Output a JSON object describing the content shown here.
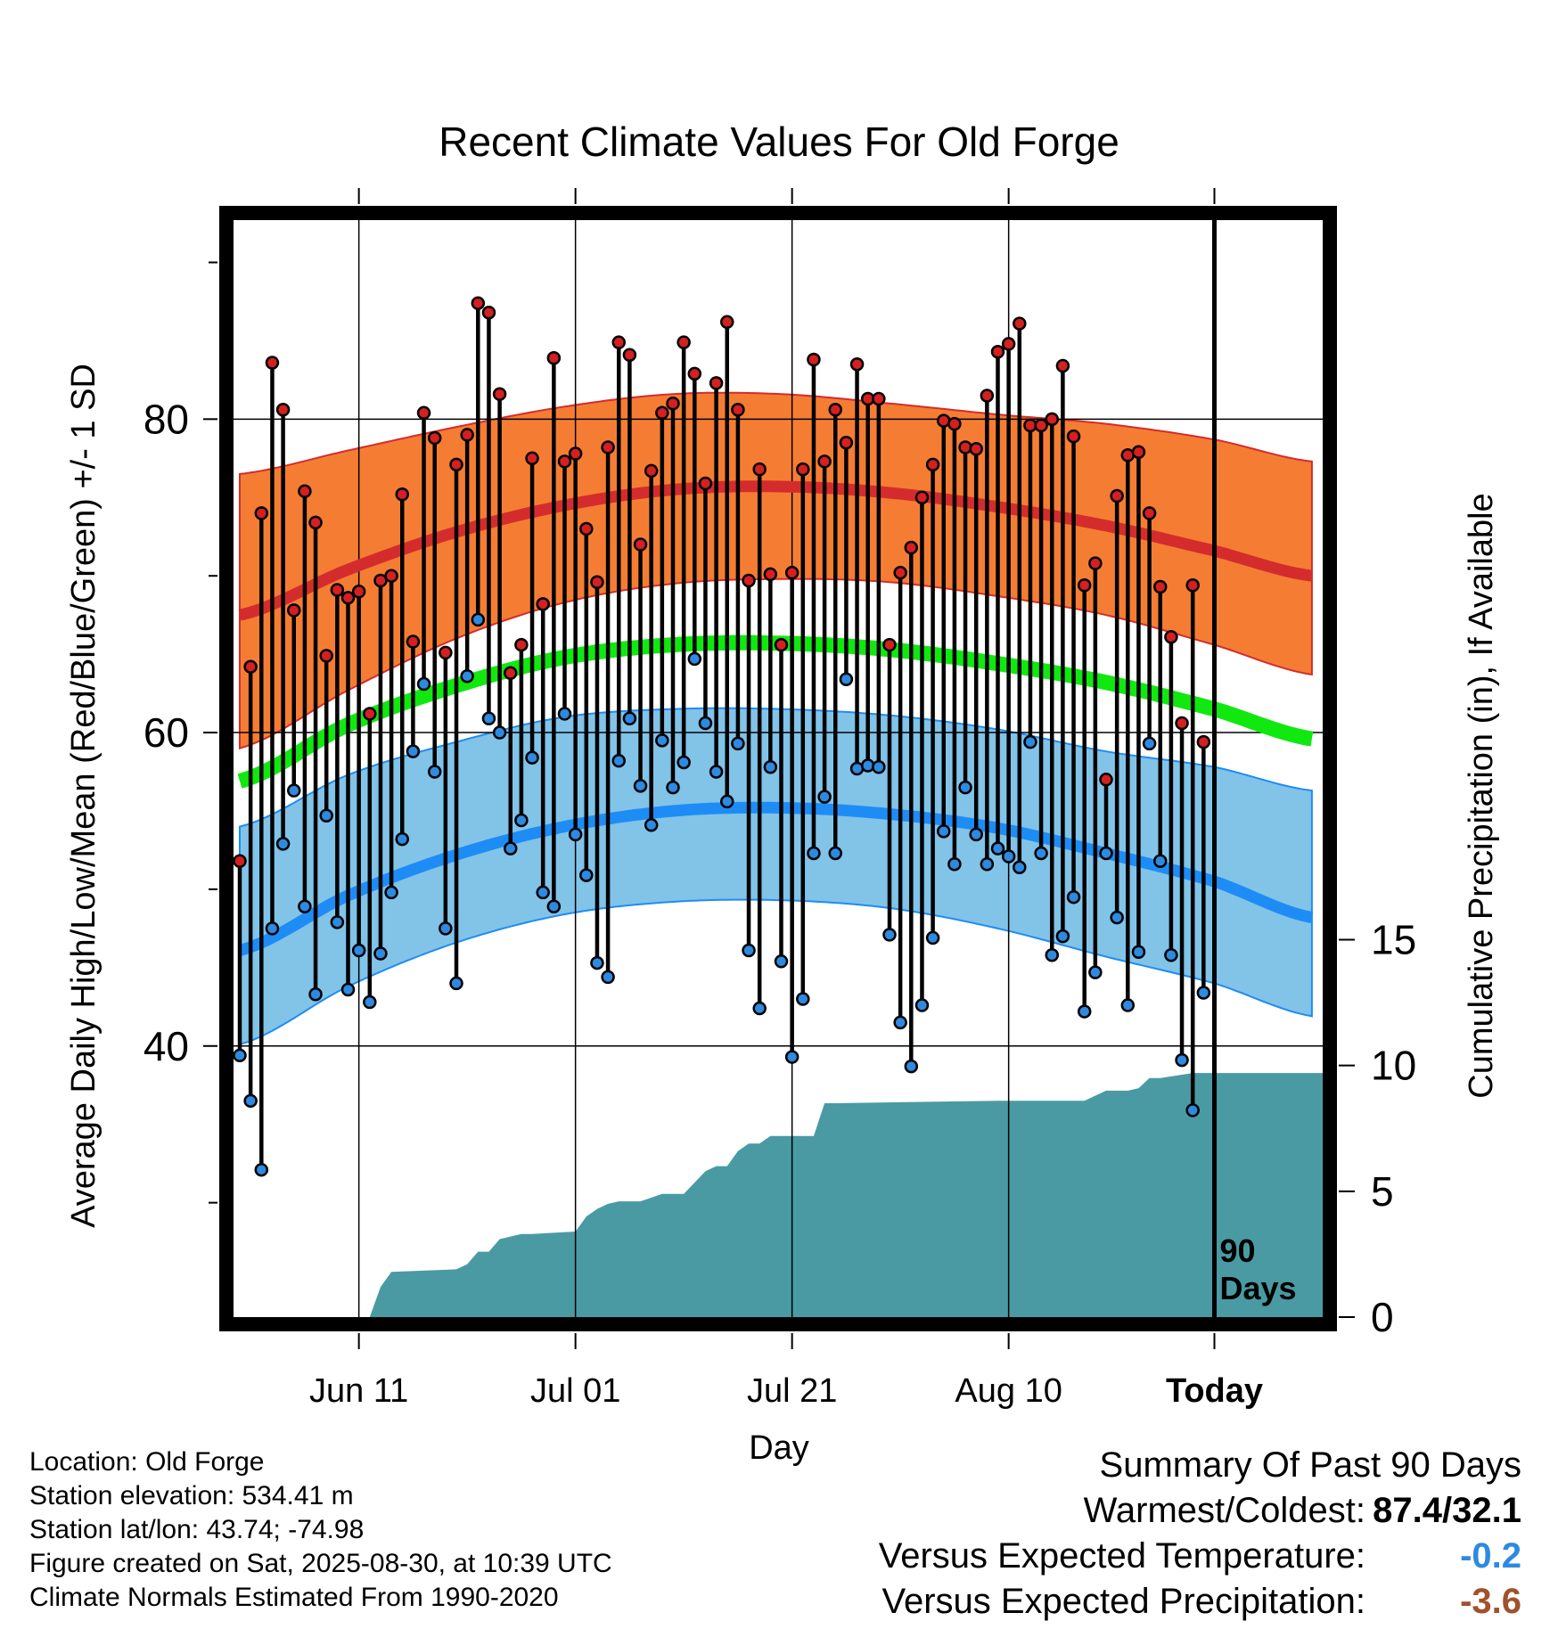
{
  "chart_data": {
    "type": "line",
    "title": "Recent Climate Values For Old Forge",
    "xlabel": "Day",
    "ylabel": "Average Daily High/Low/Mean (Red/Blue/Green) +/- 1 SD",
    "y2label": "Cumulative Precipitation (in), If Available",
    "xlim": [
      -11,
      9
    ],
    "ylim": [
      22.7,
      92.7
    ],
    "y2lim": [
      0,
      43.6
    ],
    "x_ticks": [
      {
        "day": -79,
        "label": "Jun 11"
      },
      {
        "day": -59,
        "label": "Jul 01"
      },
      {
        "day": -39,
        "label": "Jul 21"
      },
      {
        "day": -19,
        "label": "Aug 10"
      },
      {
        "day": 0,
        "label": "Today"
      }
    ],
    "y_ticks": [
      40,
      60,
      80
    ],
    "y_minor_ticks": [
      30,
      50,
      70,
      90
    ],
    "y2_ticks": [
      0,
      5,
      10,
      15
    ],
    "today_label": "90\nDays",
    "grid": true,
    "normals": {
      "day": [
        -90,
        -80,
        -70,
        -60,
        -50,
        -40,
        -30,
        -20,
        -10,
        0,
        9
      ],
      "high_mean": [
        67.5,
        70.4,
        72.8,
        74.5,
        75.5,
        75.7,
        75.3,
        74.4,
        73.2,
        71.6,
        70.0
      ],
      "high_sd_upper": [
        76.5,
        78.0,
        79.5,
        80.8,
        81.6,
        81.6,
        81.0,
        80.3,
        79.7,
        78.7,
        77.3
      ],
      "high_sd_lower": [
        59.0,
        62.7,
        66.0,
        68.3,
        69.5,
        69.8,
        69.6,
        68.7,
        67.5,
        65.6,
        63.7
      ],
      "mean": [
        56.9,
        60.5,
        63.0,
        64.8,
        65.6,
        65.7,
        65.3,
        64.4,
        63.2,
        61.5,
        59.6
      ],
      "low_mean": [
        46.1,
        49.6,
        52.2,
        54.0,
        55.0,
        55.2,
        54.8,
        53.9,
        52.3,
        50.5,
        48.2
      ],
      "low_sd_upper": [
        54.0,
        57.3,
        59.4,
        61.0,
        61.5,
        61.5,
        61.1,
        60.2,
        58.8,
        57.8,
        56.3
      ],
      "low_sd_lower": [
        40.1,
        43.8,
        46.6,
        48.4,
        49.2,
        49.3,
        48.8,
        47.5,
        45.7,
        44.0,
        41.9
      ]
    },
    "highs": [
      51.8,
      64.2,
      74.0,
      83.6,
      80.6,
      67.8,
      75.4,
      73.4,
      64.9,
      69.1,
      68.6,
      69.0,
      61.2,
      69.7,
      70.0,
      75.2,
      65.8,
      80.4,
      78.8,
      65.1,
      77.1,
      79.0,
      87.4,
      86.8,
      81.6,
      63.8,
      65.6,
      77.5,
      68.2,
      83.9,
      77.3,
      77.8,
      73.0,
      69.6,
      78.2,
      84.9,
      84.1,
      72.0,
      76.7,
      80.4,
      81.0,
      84.9,
      82.9,
      75.9,
      82.3,
      86.2,
      80.6,
      69.7,
      76.8,
      70.1,
      65.6,
      70.2,
      76.8,
      83.8,
      77.3,
      80.6,
      78.5,
      83.5,
      81.3,
      81.3,
      65.6,
      70.2,
      71.8,
      75.0,
      77.1,
      79.9,
      79.7,
      78.2,
      78.1,
      81.5,
      84.3,
      84.8,
      86.1,
      79.6,
      79.6,
      80.0,
      83.4,
      78.9,
      69.4,
      70.8,
      57.0,
      75.1,
      77.7,
      77.9,
      74.0,
      69.3,
      66.1,
      60.6,
      69.4,
      59.4
    ],
    "lows": [
      39.4,
      36.5,
      32.1,
      47.5,
      52.9,
      56.3,
      48.9,
      43.3,
      54.7,
      47.9,
      43.6,
      46.1,
      42.8,
      45.9,
      49.8,
      53.2,
      58.8,
      63.1,
      57.5,
      47.5,
      44.0,
      63.6,
      67.2,
      60.9,
      60.0,
      52.6,
      54.4,
      58.4,
      49.8,
      48.9,
      61.2,
      53.5,
      50.9,
      45.3,
      44.4,
      58.2,
      60.9,
      56.6,
      54.1,
      59.5,
      56.5,
      58.1,
      64.7,
      60.6,
      57.5,
      55.6,
      59.3,
      46.1,
      42.4,
      57.8,
      45.4,
      39.3,
      43.0,
      52.3,
      55.9,
      52.3,
      63.4,
      57.7,
      57.9,
      57.8,
      47.1,
      41.5,
      38.7,
      42.6,
      46.9,
      53.7,
      51.6,
      56.5,
      53.5,
      51.6,
      52.6,
      52.1,
      51.4,
      59.4,
      52.3,
      45.8,
      47.0,
      49.5,
      42.2,
      44.7,
      52.3,
      48.2,
      42.6,
      46.0,
      59.3,
      51.8,
      45.8,
      39.1,
      35.9,
      43.4
    ],
    "precip_cumulative": {
      "day": [
        -90,
        -78,
        -77,
        -76,
        -70,
        -69,
        -68,
        -67,
        -66,
        -64,
        -63,
        -59,
        -58,
        -57,
        -56,
        -55,
        -53,
        -51,
        -50,
        -49,
        -47,
        -46,
        -45,
        -44,
        -43,
        -42,
        -41,
        -37,
        -36,
        -35,
        -20,
        -16,
        -14,
        -12,
        -10,
        -8,
        -7,
        -6,
        -5,
        -2,
        9
      ],
      "value": [
        0,
        0,
        1.2,
        1.8,
        1.9,
        2.1,
        2.6,
        2.6,
        3.1,
        3.3,
        3.3,
        3.4,
        4.0,
        4.3,
        4.5,
        4.6,
        4.6,
        4.9,
        4.9,
        4.9,
        5.8,
        6.0,
        6.0,
        6.6,
        6.9,
        6.9,
        7.2,
        7.2,
        8.5,
        8.5,
        8.6,
        8.6,
        8.6,
        8.6,
        9.0,
        9.0,
        9.1,
        9.5,
        9.5,
        9.7,
        9.7
      ]
    },
    "colors": {
      "high_band": "#f57d33",
      "high_line": "#d42c2c",
      "mean_line": "#10e810",
      "low_band": "#82c3e8",
      "low_line": "#1e8cf5",
      "precip": "#4a9aa3",
      "high_dot": "#d42020",
      "low_dot": "#2d8ae0",
      "axes": "#000000"
    }
  },
  "footer": {
    "location": "Location: Old Forge",
    "elevation": "Station elevation: 534.41 m",
    "latlon": "Station lat/lon: 43.74; -74.98",
    "created": "Figure created on Sat, 2025-08-30, at 10:39 UTC",
    "normals_period": "Climate Normals Estimated From 1990-2020"
  },
  "summary": {
    "title": "Summary Of Past 90 Days",
    "warmest_coldest_label": "Warmest/Coldest:",
    "warmest_coldest_value": "87.4/32.1",
    "temp_label": "Versus Expected Temperature:",
    "temp_value": "-0.2",
    "temp_color": "#2d8ae0",
    "precip_label": "Versus Expected Precipitation:",
    "precip_value": "-3.6",
    "precip_color": "#a0522d"
  }
}
